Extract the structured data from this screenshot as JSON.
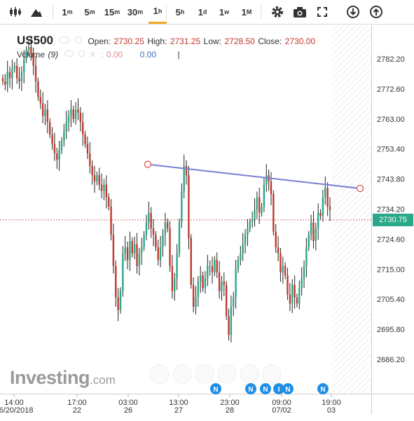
{
  "toolbar": {
    "items": [
      {
        "name": "candles-icon",
        "label": ""
      },
      {
        "name": "mountain-icon",
        "label": ""
      },
      {
        "name": "tf-1m",
        "label": "1",
        "unit": "m"
      },
      {
        "name": "tf-5m",
        "label": "5",
        "unit": "m"
      },
      {
        "name": "tf-15m",
        "label": "15",
        "unit": "m"
      },
      {
        "name": "tf-30m",
        "label": "30",
        "unit": "m"
      },
      {
        "name": "tf-1h",
        "label": "1",
        "unit": "h",
        "active": true
      },
      {
        "name": "tf-5h",
        "label": "5",
        "unit": "h"
      },
      {
        "name": "tf-1d",
        "label": "1",
        "unit": "d"
      },
      {
        "name": "tf-1w",
        "label": "1",
        "unit": "w"
      },
      {
        "name": "tf-1M",
        "label": "1",
        "unit": "M"
      }
    ],
    "icons": [
      "gear-icon",
      "camera-icon",
      "fullscreen-icon",
      "download-icon",
      "upload-icon"
    ],
    "active_color": "#f5a623"
  },
  "legend": {
    "symbol": "US500",
    "open_label": "Open:",
    "open": "2730.25",
    "high_label": "High:",
    "high": "2731.25",
    "low_label": "Low:",
    "low": "2728.50",
    "close_label": "Close:",
    "close": "2730.00",
    "volume_label": "Volume",
    "volume_period": "(9)",
    "volume_colon": ":",
    "volume_value1": "0.00",
    "volume_value2": "0.00",
    "cursor": "|"
  },
  "price_tag": "2730.75",
  "logo": {
    "main": "Investing",
    "suffix": ".com"
  },
  "news_markers": [
    "N",
    "N",
    "N",
    "I",
    "N",
    "N"
  ],
  "colors": {
    "up": "#2aa889",
    "down": "#c0392b",
    "trendline": "#7b7fd1",
    "price_tag": "#2aa889"
  },
  "chart_data": {
    "type": "candlestick",
    "title": "US500",
    "ylabel": "",
    "ylim": [
      2682,
      2792
    ],
    "y_ticks": [
      "2782.20",
      "2772.60",
      "2763.00",
      "2753.40",
      "2743.80",
      "2734.20",
      "2724.60",
      "2715.00",
      "2705.40",
      "2695.80",
      "2686.20"
    ],
    "x_ticks": [
      {
        "time": "14:00",
        "date": "06/20/2018"
      },
      {
        "time": "17:00",
        "date": "22"
      },
      {
        "time": "03:00",
        "date": "26"
      },
      {
        "time": "13:00",
        "date": "27"
      },
      {
        "time": "23:00",
        "date": "28"
      },
      {
        "time": "09:00",
        "date": "07/02"
      },
      {
        "time": "19:00",
        "date": "03"
      }
    ],
    "closes": [
      2775,
      2774,
      2778,
      2776,
      2779,
      2780,
      2776,
      2775,
      2778,
      2782,
      2785,
      2786,
      2784,
      2780,
      2775,
      2770,
      2768,
      2764,
      2766,
      2762,
      2758,
      2755,
      2752,
      2750,
      2753,
      2756,
      2759,
      2762,
      2764,
      2766,
      2763,
      2766,
      2765,
      2762,
      2758,
      2755,
      2752,
      2748,
      2745,
      2743,
      2745,
      2742,
      2740,
      2742,
      2738,
      2735,
      2726,
      2716,
      2706,
      2702,
      2708,
      2720,
      2722,
      2718,
      2724,
      2720,
      2723,
      2716,
      2720,
      2722,
      2726,
      2730,
      2733,
      2728,
      2726,
      2722,
      2718,
      2722,
      2726,
      2730,
      2728,
      2716,
      2708,
      2712,
      2720,
      2730,
      2740,
      2748,
      2745,
      2725,
      2710,
      2703,
      2706,
      2711,
      2713,
      2709,
      2712,
      2716,
      2716,
      2714,
      2718,
      2714,
      2708,
      2711,
      2710,
      2700,
      2694,
      2703,
      2706,
      2715,
      2718,
      2720,
      2723,
      2726,
      2728,
      2730,
      2731,
      2734,
      2738,
      2733,
      2735,
      2742,
      2745,
      2743,
      2739,
      2727,
      2722,
      2720,
      2714,
      2716,
      2713,
      2707,
      2704,
      2710,
      2706,
      2704,
      2709,
      2712,
      2716,
      2722,
      2726,
      2730,
      2724,
      2728,
      2733,
      2732,
      2738,
      2741,
      2735,
      2734
    ],
    "trendline": {
      "from": {
        "index": 61,
        "value": 2748.5
      },
      "to": {
        "index": 144,
        "value": 2740.8
      }
    },
    "last_price": 2730.75,
    "legend": "none",
    "grid": false
  }
}
